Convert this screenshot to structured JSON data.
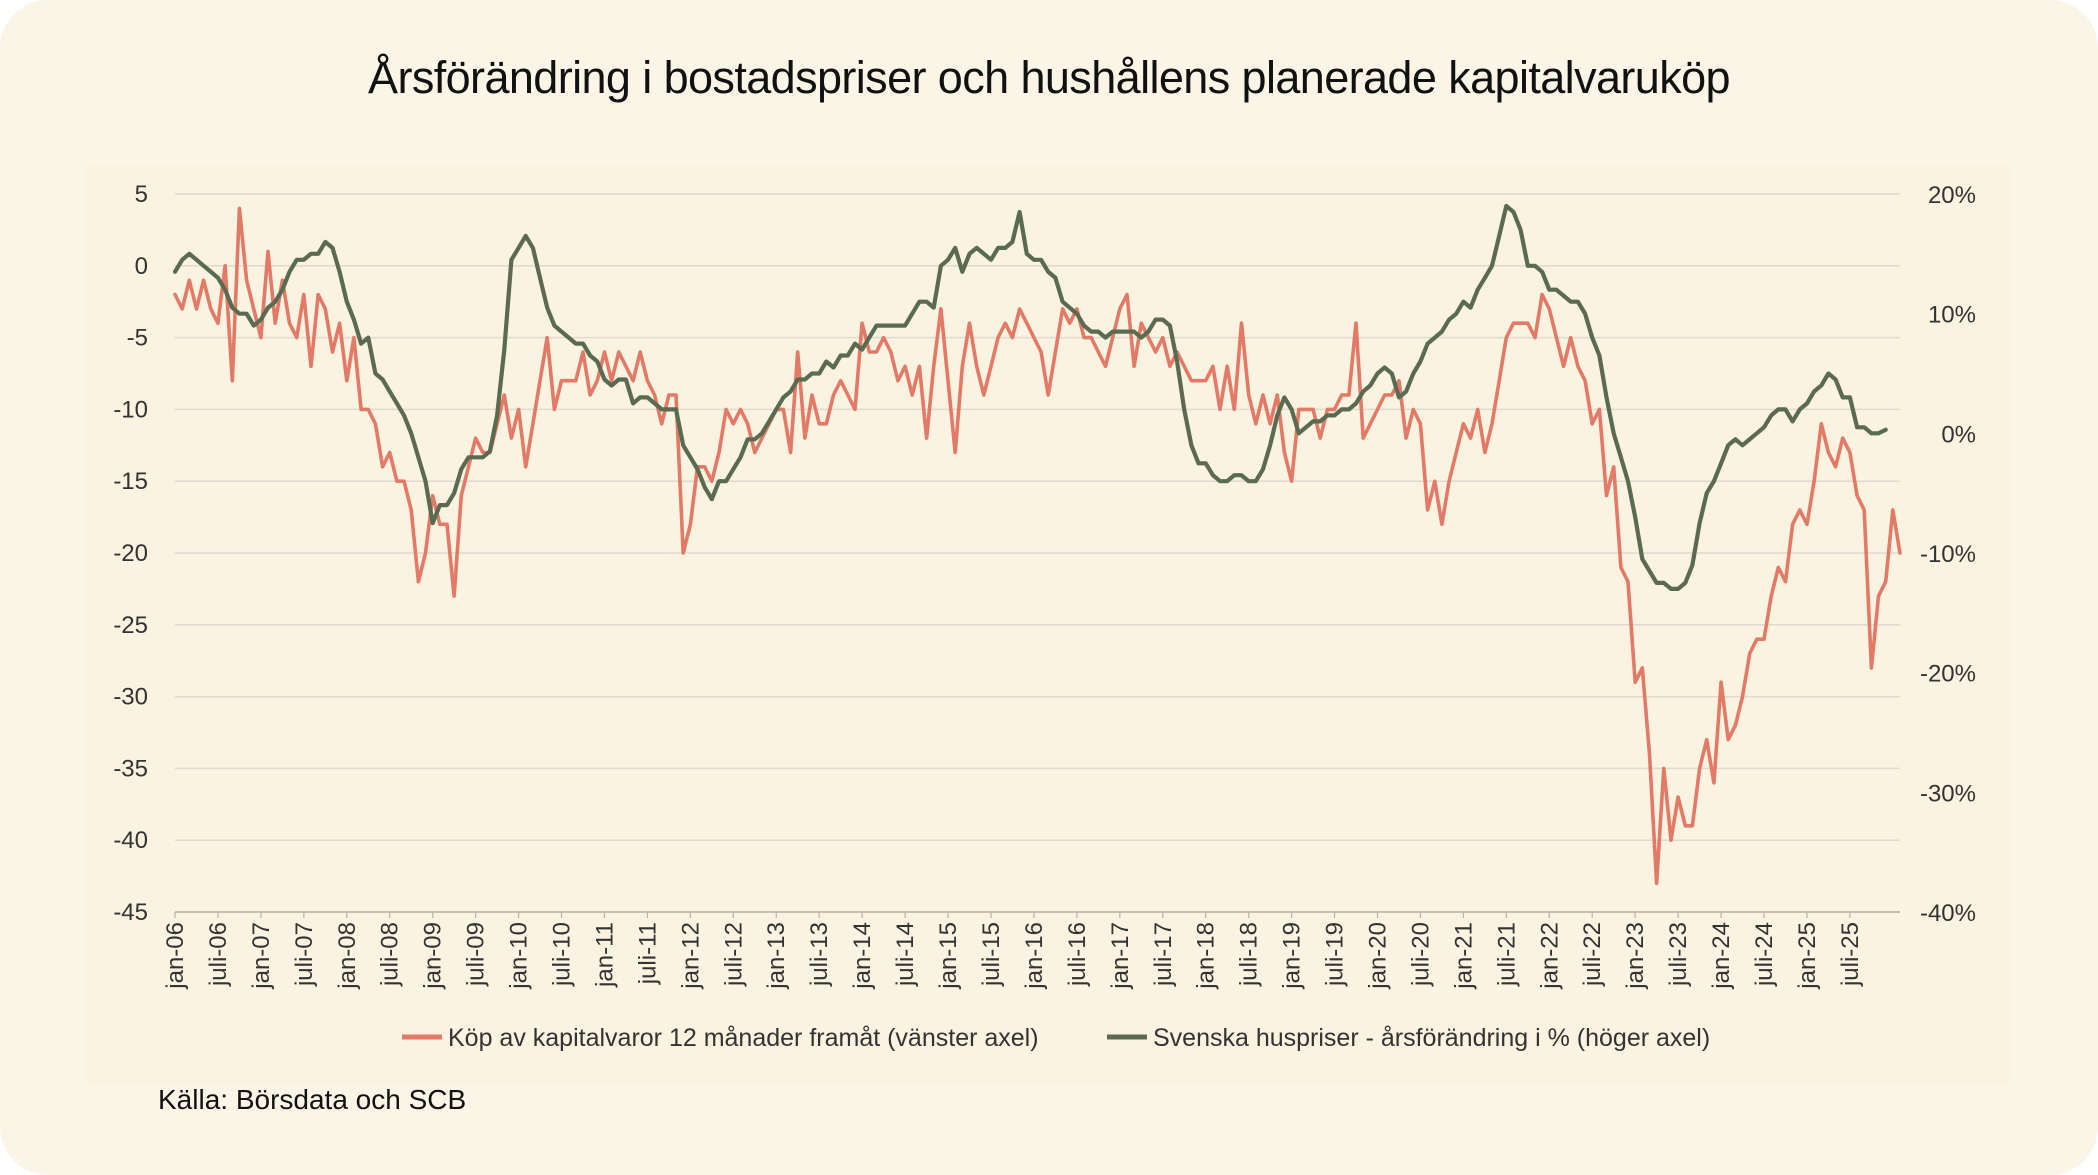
{
  "title": "Årsförändring i bostadspriser och hushållens planerade kapitalvaruköp",
  "source": "Källa: Börsdata och SCB",
  "colors": {
    "left_series": "#e37a67",
    "right_series": "#5b6b52",
    "grid": "#dedad0",
    "background": "#fbf5e8"
  },
  "chart_data": {
    "type": "line",
    "xlabel": "",
    "grid": true,
    "legend_placement": "bottom",
    "x_tick_labels": [
      "jan-06",
      "juli-06",
      "jan-07",
      "juli-07",
      "jan-08",
      "juli-08",
      "jan-09",
      "juli-09",
      "jan-10",
      "juli-10",
      "jan-11",
      "juli-11",
      "jan-12",
      "juli-12",
      "jan-13",
      "juli-13",
      "jan-14",
      "juli-14",
      "jan-15",
      "juli-15",
      "jan-16",
      "juli-16",
      "jan-17",
      "juli-17",
      "jan-18",
      "juli-18",
      "jan-19",
      "juli-19",
      "jan-20",
      "juli-20",
      "jan-21",
      "juli-21",
      "jan-22",
      "juli-22",
      "jan-23",
      "juli-23",
      "jan-24",
      "juli-24",
      "jan-25",
      "juli-25"
    ],
    "left_axis": {
      "ylim": [
        -45,
        5
      ],
      "ticks": [
        "5",
        "0",
        "-5",
        "-10",
        "-15",
        "-20",
        "-25",
        "-30",
        "-35",
        "-40",
        "-45"
      ]
    },
    "right_axis": {
      "ylim": [
        -40,
        20
      ],
      "ticks": [
        "20%",
        "10%",
        "0%",
        "-10%",
        "-20%",
        "-30%",
        "-40%"
      ]
    },
    "x_start": "2006-01",
    "series": [
      {
        "name": "Köp av kapitalvaror 12 månader framåt (vänster axel)",
        "axis": "left",
        "values": [
          -2,
          -3,
          -1,
          -3,
          -1,
          -3,
          -4,
          0,
          -8,
          4,
          -1,
          -3,
          -5,
          1,
          -4,
          -1,
          -4,
          -5,
          -2,
          -7,
          -2,
          -3,
          -6,
          -4,
          -8,
          -5,
          -10,
          -10,
          -11,
          -14,
          -13,
          -15,
          -15,
          -17,
          -22,
          -20,
          -16,
          -18,
          -18,
          -23,
          -16,
          -14,
          -12,
          -13,
          -13,
          -11,
          -9,
          -12,
          -10,
          -14,
          -11,
          -8,
          -5,
          -10,
          -8,
          -8,
          -8,
          -6,
          -9,
          -8,
          -6,
          -8,
          -6,
          -7,
          -8,
          -6,
          -8,
          -9,
          -11,
          -9,
          -9,
          -20,
          -18,
          -14,
          -14,
          -15,
          -13,
          -10,
          -11,
          -10,
          -11,
          -13,
          -12,
          -11,
          -10,
          -10,
          -13,
          -6,
          -12,
          -9,
          -11,
          -11,
          -9,
          -8,
          -9,
          -10,
          -4,
          -6,
          -6,
          -5,
          -6,
          -8,
          -7,
          -9,
          -7,
          -12,
          -7,
          -3,
          -8,
          -13,
          -7,
          -4,
          -7,
          -9,
          -7,
          -5,
          -4,
          -5,
          -3,
          -4,
          -5,
          -6,
          -9,
          -6,
          -3,
          -4,
          -3,
          -5,
          -5,
          -6,
          -7,
          -5,
          -3,
          -2,
          -7,
          -4,
          -5,
          -6,
          -5,
          -7,
          -6,
          -7,
          -8,
          -8,
          -8,
          -7,
          -10,
          -7,
          -10,
          -4,
          -9,
          -11,
          -9,
          -11,
          -9,
          -13,
          -15,
          -10,
          -10,
          -10,
          -12,
          -10,
          -10,
          -9,
          -9,
          -4,
          -12,
          -11,
          -10,
          -9,
          -9,
          -8,
          -12,
          -10,
          -11,
          -17,
          -15,
          -18,
          -15,
          -13,
          -11,
          -12,
          -10,
          -13,
          -11,
          -8,
          -5,
          -4,
          -4,
          -4,
          -5,
          -2,
          -3,
          -5,
          -7,
          -5,
          -7,
          -8,
          -11,
          -10,
          -16,
          -14,
          -21,
          -22,
          -29,
          -28,
          -34,
          -43,
          -35,
          -40,
          -37,
          -39,
          -39,
          -35,
          -33,
          -36,
          -29,
          -33,
          -32,
          -30,
          -27,
          -26,
          -26,
          -23,
          -21,
          -22,
          -18,
          -17,
          -18,
          -15,
          -11,
          -13,
          -14,
          -12,
          -13,
          -16,
          -17,
          -28,
          -23,
          -22,
          -17,
          -20
        ]
      },
      {
        "name": "Svenska huspriser - årsförändring i % (höger axel)",
        "axis": "right",
        "values": [
          13.5,
          14.5,
          15,
          14.5,
          14,
          13.5,
          13,
          12,
          10.5,
          10,
          10,
          9,
          9.5,
          10.5,
          11,
          12,
          13.5,
          14.5,
          14.5,
          15,
          15,
          16,
          15.5,
          13.5,
          11,
          9.5,
          7.5,
          8,
          5,
          4.5,
          3.5,
          2.5,
          1.5,
          0,
          -2,
          -4,
          -7.5,
          -6,
          -6,
          -5,
          -3,
          -2,
          -2,
          -2,
          -1.5,
          1.5,
          7,
          14.5,
          15.5,
          16.5,
          15.5,
          13,
          10.5,
          9,
          8.5,
          8,
          7.5,
          7.5,
          6.5,
          6,
          4.5,
          4,
          4.5,
          4.5,
          2.5,
          3,
          3,
          2.5,
          2,
          2,
          2,
          -1,
          -2,
          -3,
          -4.5,
          -5.5,
          -4,
          -4,
          -3,
          -2,
          -0.5,
          -0.5,
          0,
          1,
          2,
          3,
          3.5,
          4.5,
          4.5,
          5,
          5,
          6,
          5.5,
          6.5,
          6.5,
          7.5,
          7,
          8,
          9,
          9,
          9,
          9,
          9,
          10,
          11,
          11,
          10.5,
          14,
          14.5,
          15.5,
          13.5,
          15,
          15.5,
          15,
          14.5,
          15.5,
          15.5,
          16,
          18.5,
          15,
          14.5,
          14.5,
          13.5,
          13,
          11,
          10.5,
          10,
          9,
          8.5,
          8.5,
          8,
          8.5,
          8.5,
          8.5,
          8.5,
          8,
          8.5,
          9.5,
          9.5,
          9,
          6,
          2,
          -1,
          -2.5,
          -2.5,
          -3.5,
          -4,
          -4,
          -3.5,
          -3.5,
          -4,
          -4,
          -3,
          -1,
          1.5,
          3,
          2,
          0,
          0.5,
          1,
          1,
          1.5,
          1.5,
          2,
          2,
          2.5,
          3.5,
          4,
          5,
          5.5,
          5,
          3,
          3.5,
          5,
          6,
          7.5,
          8,
          8.5,
          9.5,
          10,
          11,
          10.5,
          12,
          13,
          14,
          16.5,
          19,
          18.5,
          17,
          14,
          14,
          13.5,
          12,
          12,
          11.5,
          11,
          11,
          10,
          8,
          6.5,
          3,
          0,
          -2,
          -4,
          -7,
          -10.5,
          -11.5,
          -12.5,
          -12.5,
          -13,
          -13,
          -12.5,
          -11,
          -7.5,
          -5,
          -4,
          -2.5,
          -1,
          -0.5,
          -1,
          -0.5,
          0,
          0.5,
          1.5,
          2,
          2,
          1,
          2,
          2.5,
          3.5,
          4,
          5,
          4.5,
          3,
          3,
          0.5,
          0.5,
          0,
          0,
          0.3
        ]
      }
    ]
  }
}
